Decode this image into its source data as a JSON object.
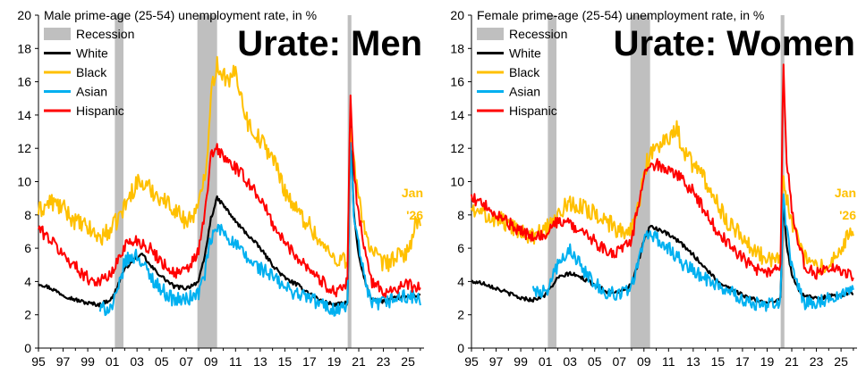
{
  "chart_data": [
    {
      "type": "line",
      "title": "Male prime-age (25-54) unemployment rate, in %",
      "overlay_title": "Urate: Men",
      "annotation": [
        "Jan",
        "'26"
      ],
      "x_tick_labels": [
        "95",
        "97",
        "99",
        "01",
        "03",
        "05",
        "07",
        "09",
        "11",
        "13",
        "15",
        "17",
        "19",
        "21",
        "23",
        "25"
      ],
      "y_tick_labels": [
        "0",
        "2",
        "4",
        "6",
        "8",
        "10",
        "12",
        "14",
        "16",
        "18",
        "20"
      ],
      "xlim": [
        1995,
        2026.3
      ],
      "ylim": [
        0,
        20
      ],
      "legend_position": "top-left",
      "recessions": [
        [
          2001.2,
          2001.9
        ],
        [
          2007.9,
          2009.5
        ],
        [
          2020.1,
          2020.4
        ]
      ],
      "recession_label": "Recession",
      "series": [
        {
          "name": "White",
          "color": "#000000",
          "x": [
            1995,
            1996,
            1997,
            1998,
            1999,
            2000,
            2001,
            2001.9,
            2002.5,
            2003.5,
            2004,
            2005,
            2006,
            2007,
            2008,
            2008.5,
            2009,
            2009.5,
            2010,
            2011,
            2012,
            2013,
            2014,
            2015,
            2016,
            2017,
            2018,
            2019,
            2020.1,
            2020.3,
            2020.6,
            2021,
            2021.5,
            2022,
            2023,
            2024,
            2025,
            2026
          ],
          "y": [
            3.9,
            3.6,
            3.2,
            2.9,
            2.7,
            2.6,
            3.0,
            4.6,
            5.2,
            5.6,
            5.0,
            4.3,
            3.7,
            3.6,
            4.0,
            5.5,
            7.8,
            9.0,
            8.6,
            7.6,
            6.8,
            6.0,
            5.0,
            4.2,
            3.8,
            3.3,
            2.8,
            2.6,
            2.7,
            14.2,
            8.0,
            5.5,
            4.0,
            3.0,
            2.8,
            3.0,
            3.1,
            3.2
          ]
        },
        {
          "name": "Black",
          "color": "#FFC000",
          "x": [
            1995,
            1996,
            1997,
            1998,
            1999,
            2000,
            2001,
            2002,
            2003,
            2004,
            2005,
            2006,
            2007,
            2008,
            2008.7,
            2009,
            2009.5,
            2010,
            2010.5,
            2011,
            2011.5,
            2012,
            2013,
            2014,
            2015,
            2016,
            2017,
            2018,
            2019,
            2020.1,
            2020.3,
            2020.6,
            2021,
            2021.5,
            2022,
            2023,
            2024,
            2025,
            2025.6,
            2026
          ],
          "y": [
            8.2,
            8.8,
            8.4,
            7.6,
            7.2,
            6.6,
            7.2,
            8.5,
            10.0,
            9.6,
            9.0,
            8.4,
            7.6,
            8.4,
            11.5,
            15.5,
            17.0,
            16.5,
            15.8,
            16.8,
            15.0,
            13.5,
            12.5,
            11.5,
            9.5,
            8.2,
            7.4,
            6.2,
            5.4,
            5.3,
            13.5,
            11.0,
            9.0,
            7.2,
            5.8,
            5.0,
            5.4,
            5.8,
            7.4,
            7.3
          ]
        },
        {
          "name": "Asian",
          "color": "#00B0F0",
          "x": [
            2000,
            2001,
            2001.5,
            2002,
            2003,
            2004,
            2005,
            2006,
            2007,
            2008,
            2008.5,
            2009,
            2009.5,
            2010,
            2011,
            2012,
            2013,
            2014,
            2015,
            2016,
            2017,
            2018,
            2019,
            2020.1,
            2020.3,
            2020.6,
            2021,
            2021.5,
            2022,
            2023,
            2024,
            2025,
            2026
          ],
          "y": [
            2.3,
            2.5,
            3.5,
            5.2,
            5.6,
            4.4,
            3.5,
            2.9,
            2.9,
            3.3,
            4.5,
            6.5,
            7.2,
            7.0,
            6.2,
            5.3,
            4.8,
            4.3,
            3.6,
            3.3,
            3.0,
            2.6,
            2.3,
            2.5,
            12.5,
            8.0,
            6.0,
            4.0,
            2.6,
            2.7,
            3.0,
            3.1,
            2.9
          ]
        },
        {
          "name": "Hispanic",
          "color": "#FF0000",
          "x": [
            1995,
            1996,
            1997,
            1998,
            1999,
            2000,
            2001,
            2002,
            2003,
            2004,
            2005,
            2006,
            2007,
            2008,
            2008.5,
            2009,
            2009.5,
            2010,
            2011,
            2012,
            2013,
            2014,
            2015,
            2016,
            2017,
            2018,
            2019,
            2020.1,
            2020.3,
            2020.6,
            2021,
            2021.5,
            2022,
            2023,
            2024,
            2025,
            2026
          ],
          "y": [
            7.2,
            6.5,
            5.6,
            4.9,
            4.2,
            4.0,
            4.5,
            6.2,
            6.5,
            6.0,
            5.2,
            4.5,
            4.6,
            5.8,
            8.0,
            11.5,
            12.0,
            11.5,
            10.8,
            10.0,
            9.0,
            7.5,
            6.3,
            5.5,
            4.8,
            4.0,
            3.4,
            3.9,
            15.5,
            10.5,
            8.0,
            6.0,
            4.0,
            3.4,
            3.6,
            3.8,
            3.6
          ]
        }
      ]
    },
    {
      "type": "line",
      "title": "Female prime-age (25-54) unemployment rate, in %",
      "overlay_title": "Urate: Women",
      "annotation": [
        "Jan",
        "'26"
      ],
      "x_tick_labels": [
        "95",
        "97",
        "99",
        "01",
        "03",
        "05",
        "07",
        "09",
        "11",
        "13",
        "15",
        "17",
        "19",
        "21",
        "23",
        "25"
      ],
      "y_tick_labels": [
        "0",
        "2",
        "4",
        "6",
        "8",
        "10",
        "12",
        "14",
        "16",
        "18",
        "20"
      ],
      "xlim": [
        1995,
        2026.3
      ],
      "ylim": [
        0,
        20
      ],
      "legend_position": "top-left",
      "recessions": [
        [
          2001.2,
          2001.9
        ],
        [
          2007.9,
          2009.5
        ],
        [
          2020.1,
          2020.4
        ]
      ],
      "recession_label": "Recession",
      "series": [
        {
          "name": "White",
          "color": "#000000",
          "x": [
            1995,
            1996,
            1997,
            1998,
            1999,
            2000,
            2001,
            2002,
            2003,
            2004,
            2005,
            2006,
            2007,
            2008,
            2008.5,
            2009,
            2009.5,
            2010,
            2011,
            2012,
            2013,
            2014,
            2015,
            2016,
            2017,
            2018,
            2019,
            2020.1,
            2020.3,
            2020.6,
            2021,
            2021.5,
            2022,
            2023,
            2024,
            2025,
            2026
          ],
          "y": [
            4.0,
            3.9,
            3.6,
            3.3,
            3.0,
            2.9,
            3.2,
            4.2,
            4.5,
            4.2,
            3.8,
            3.4,
            3.4,
            3.8,
            5.0,
            6.5,
            7.3,
            7.2,
            6.8,
            6.3,
            5.6,
            4.8,
            4.0,
            3.6,
            3.2,
            2.9,
            2.7,
            3.0,
            9.0,
            6.0,
            4.5,
            3.6,
            3.1,
            3.0,
            3.1,
            3.2,
            3.3
          ]
        },
        {
          "name": "Black",
          "color": "#FFC000",
          "x": [
            1995,
            1996,
            1997,
            1998,
            1999,
            2000,
            2001,
            2002,
            2003,
            2004,
            2005,
            2006,
            2007,
            2008,
            2008.7,
            2009,
            2009.5,
            2010,
            2011,
            2011.7,
            2012,
            2013,
            2014,
            2015,
            2016,
            2017,
            2018,
            2019,
            2020.1,
            2020.3,
            2020.6,
            2021,
            2021.5,
            2022,
            2023,
            2024,
            2025,
            2025.6,
            2026
          ],
          "y": [
            8.2,
            8.0,
            7.8,
            7.4,
            7.0,
            6.7,
            7.1,
            8.0,
            8.8,
            8.4,
            8.2,
            7.6,
            7.0,
            7.2,
            9.0,
            10.5,
            11.8,
            12.0,
            12.6,
            13.5,
            12.0,
            11.0,
            10.0,
            8.6,
            7.4,
            6.8,
            5.8,
            5.3,
            5.3,
            10.5,
            9.0,
            7.5,
            6.5,
            5.5,
            4.8,
            5.0,
            5.6,
            6.8,
            7.0
          ]
        },
        {
          "name": "Asian",
          "color": "#00B0F0",
          "x": [
            2000,
            2001,
            2001.5,
            2002,
            2003,
            2004,
            2005,
            2006,
            2007,
            2008,
            2008.5,
            2009,
            2009.5,
            2010,
            2011,
            2012,
            2013,
            2014,
            2015,
            2016,
            2017,
            2018,
            2019,
            2020.1,
            2020.3,
            2020.6,
            2021,
            2021.5,
            2022,
            2023,
            2024,
            2025,
            2026
          ],
          "y": [
            3.5,
            3.3,
            4.2,
            5.0,
            5.8,
            4.8,
            3.8,
            3.4,
            3.3,
            3.7,
            5.0,
            6.5,
            7.0,
            6.6,
            6.0,
            5.2,
            4.6,
            4.2,
            3.7,
            3.3,
            3.0,
            2.7,
            2.5,
            2.8,
            9.5,
            7.0,
            5.0,
            3.6,
            2.7,
            2.8,
            3.0,
            3.4,
            3.6
          ]
        },
        {
          "name": "Hispanic",
          "color": "#FF0000",
          "x": [
            1995,
            1996,
            1997,
            1998,
            1999,
            2000,
            2001,
            2002,
            2003,
            2004,
            2005,
            2006,
            2007,
            2008,
            2008.5,
            2009,
            2009.5,
            2010,
            2011,
            2012,
            2013,
            2014,
            2015,
            2016,
            2017,
            2018,
            2019,
            2020.1,
            2020.3,
            2020.6,
            2021,
            2021.5,
            2022,
            2023,
            2024,
            2025,
            2026
          ],
          "y": [
            9.0,
            8.6,
            8.0,
            7.5,
            7.0,
            6.6,
            6.8,
            7.6,
            7.5,
            7.0,
            6.4,
            5.8,
            5.8,
            6.5,
            8.5,
            10.5,
            11.0,
            11.0,
            10.8,
            10.2,
            9.4,
            8.2,
            7.0,
            6.2,
            5.4,
            4.8,
            4.6,
            4.8,
            17.5,
            11.0,
            8.5,
            6.5,
            5.0,
            4.5,
            4.8,
            4.6,
            4.4
          ]
        }
      ]
    }
  ]
}
